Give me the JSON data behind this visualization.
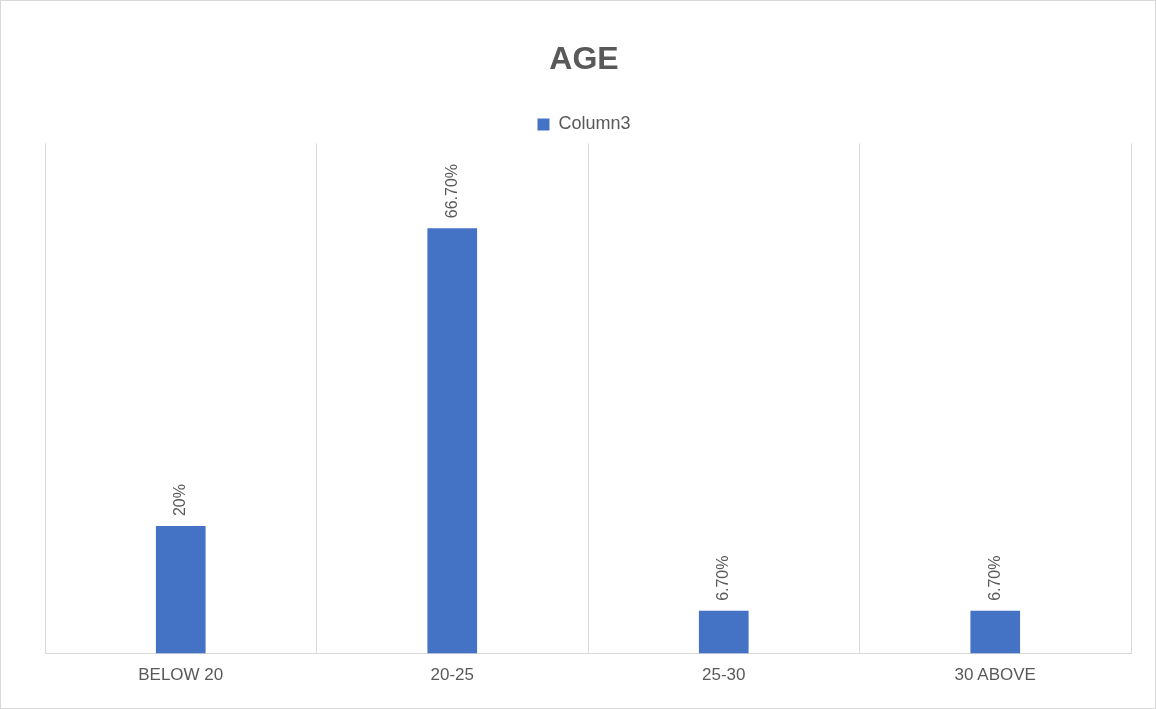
{
  "chart_data": {
    "type": "bar",
    "title": "AGE",
    "categories": [
      "BELOW 20",
      "20-25",
      "25-30",
      "30 ABOVE"
    ],
    "series": [
      {
        "name": "Column3",
        "color": "#4472c4",
        "values": [
          20,
          66.7,
          6.7,
          6.7
        ],
        "value_labels": [
          "20%",
          "66.70%",
          "6.70%",
          "6.70%"
        ]
      }
    ],
    "grid": "x",
    "legend": "top"
  }
}
